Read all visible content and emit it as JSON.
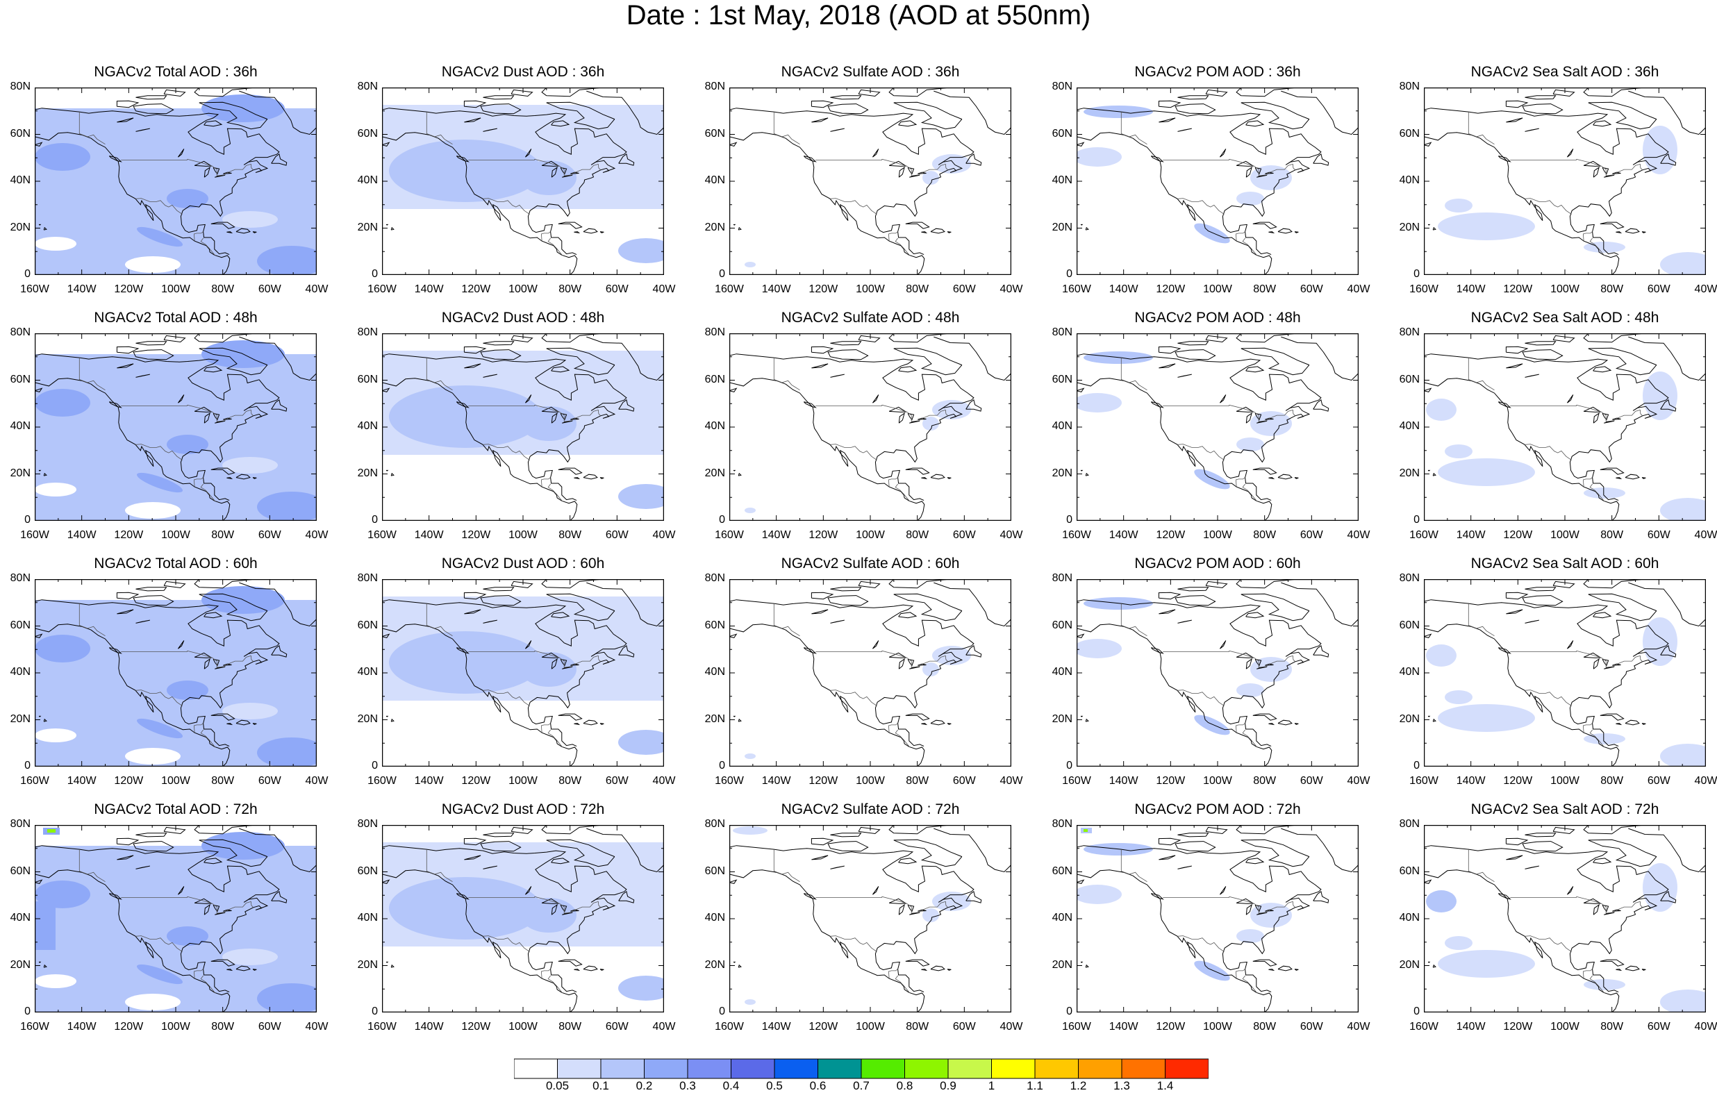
{
  "title": "Date : 1st May, 2018 (AOD at 550nm)",
  "map_axes": {
    "y_ticks": [
      "80N",
      "60N",
      "40N",
      "20N",
      "0"
    ],
    "x_ticks": [
      "160W",
      "140W",
      "120W",
      "100W",
      "80W",
      "60W",
      "40W"
    ],
    "lat_range": [
      0,
      80
    ],
    "lon_range": [
      -160,
      -40
    ]
  },
  "panels": [
    {
      "title": "NGACv2 Total AOD : 36h",
      "field": "total",
      "lead": "36h"
    },
    {
      "title": "NGACv2 Dust AOD : 36h",
      "field": "dust",
      "lead": "36h"
    },
    {
      "title": "NGACv2 Sulfate AOD : 36h",
      "field": "sulfate",
      "lead": "36h"
    },
    {
      "title": "NGACv2 POM AOD : 36h",
      "field": "pom",
      "lead": "36h"
    },
    {
      "title": "NGACv2 Sea Salt AOD : 36h",
      "field": "seasalt",
      "lead": "36h"
    },
    {
      "title": "NGACv2 Total AOD : 48h",
      "field": "total",
      "lead": "48h"
    },
    {
      "title": "NGACv2 Dust AOD : 48h",
      "field": "dust",
      "lead": "48h"
    },
    {
      "title": "NGACv2 Sulfate AOD : 48h",
      "field": "sulfate",
      "lead": "48h"
    },
    {
      "title": "NGACv2 POM AOD : 48h",
      "field": "pom",
      "lead": "48h"
    },
    {
      "title": "NGACv2 Sea Salt AOD : 48h",
      "field": "seasalt",
      "lead": "48h"
    },
    {
      "title": "NGACv2 Total AOD : 60h",
      "field": "total",
      "lead": "60h"
    },
    {
      "title": "NGACv2 Dust AOD : 60h",
      "field": "dust",
      "lead": "60h"
    },
    {
      "title": "NGACv2 Sulfate AOD : 60h",
      "field": "sulfate",
      "lead": "60h"
    },
    {
      "title": "NGACv2 POM AOD : 60h",
      "field": "pom",
      "lead": "60h"
    },
    {
      "title": "NGACv2 Sea Salt AOD : 60h",
      "field": "seasalt",
      "lead": "60h"
    },
    {
      "title": "NGACv2 Total AOD : 72h",
      "field": "total",
      "lead": "72h"
    },
    {
      "title": "NGACv2 Dust AOD : 72h",
      "field": "dust",
      "lead": "72h"
    },
    {
      "title": "NGACv2 Sulfate AOD : 72h",
      "field": "sulfate",
      "lead": "72h"
    },
    {
      "title": "NGACv2 POM AOD : 72h",
      "field": "pom",
      "lead": "72h"
    },
    {
      "title": "NGACv2 Sea Salt  AOD : 72h",
      "field": "seasalt",
      "lead": "72h"
    }
  ],
  "colorbar": {
    "colors": [
      "#ffffff",
      "#d4defc",
      "#b4c6fa",
      "#8fa9f8",
      "#7b8ff4",
      "#5b6ae8",
      "#0a5ff0",
      "#009393",
      "#55ec00",
      "#8ef500",
      "#c8f84a",
      "#ffff00",
      "#ffc800",
      "#ffa000",
      "#ff7200",
      "#ff2a00"
    ],
    "labels": [
      "0.05",
      "0.1",
      "0.2",
      "0.3",
      "0.4",
      "0.5",
      "0.6",
      "0.7",
      "0.8",
      "0.9",
      "1",
      "1.1",
      "1.2",
      "1.3",
      "1.4"
    ]
  }
}
